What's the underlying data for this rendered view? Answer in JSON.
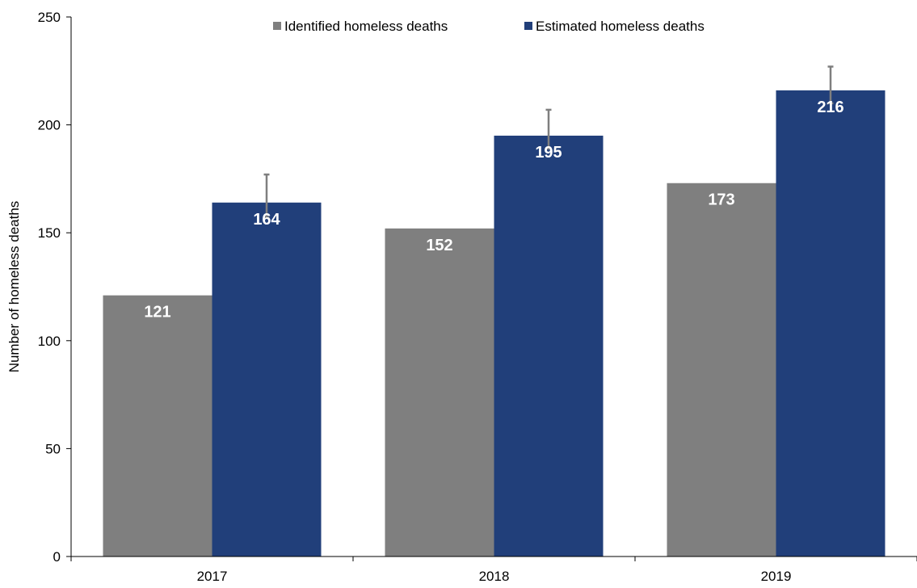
{
  "chart_data": {
    "type": "bar",
    "title": "",
    "xlabel": "",
    "ylabel": "Number of homeless deaths",
    "categories": [
      "2017",
      "2018",
      "2019"
    ],
    "ylim": [
      0,
      250
    ],
    "yticks": [
      0,
      50,
      100,
      150,
      200,
      250
    ],
    "grid": false,
    "legend_position": "top-center",
    "series": [
      {
        "name": "Identified homeless deaths",
        "color": "#7f7f7f",
        "values": [
          121,
          152,
          173
        ],
        "labels": [
          "121",
          "152",
          "173"
        ]
      },
      {
        "name": "Estimated homeless deaths",
        "color": "#213f7a",
        "values": [
          164,
          195,
          216
        ],
        "labels": [
          "164",
          "195",
          "216"
        ],
        "error_low": [
          157,
          189,
          210
        ],
        "error_high": [
          177,
          207,
          227
        ]
      }
    ],
    "error_bar_color": "#7f7f7f"
  }
}
